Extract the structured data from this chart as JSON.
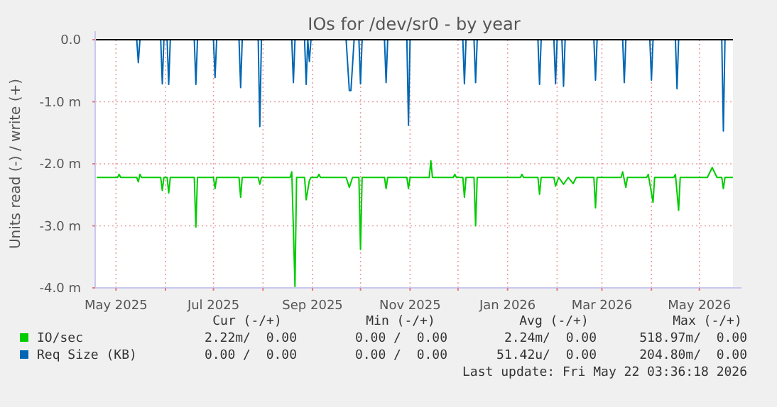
{
  "chart_data": {
    "type": "line",
    "title": "IOs for /dev/sr0 - by year",
    "ylabel": "Units read (-) / write (+)",
    "xlim": [
      "2025-04-18",
      "2026-05-22"
    ],
    "xticks": [
      {
        "value": "2025-05-01",
        "label": "May 2025"
      },
      {
        "value": "2025-06-01",
        "label": null
      },
      {
        "value": "2025-07-01",
        "label": "Jul 2025"
      },
      {
        "value": "2025-08-01",
        "label": null
      },
      {
        "value": "2025-09-01",
        "label": "Sep 2025"
      },
      {
        "value": "2025-10-01",
        "label": null
      },
      {
        "value": "2025-11-01",
        "label": "Nov 2025"
      },
      {
        "value": "2025-12-01",
        "label": null
      },
      {
        "value": "2026-01-01",
        "label": "Jan 2026"
      },
      {
        "value": "2026-02-01",
        "label": null
      },
      {
        "value": "2026-03-01",
        "label": "Mar 2026"
      },
      {
        "value": "2026-04-01",
        "label": null
      },
      {
        "value": "2026-05-01",
        "label": "May 2026"
      }
    ],
    "ylim": [
      -4,
      0
    ],
    "yticks": [
      {
        "value": -4,
        "label": "-4.0 m"
      },
      {
        "value": -3,
        "label": "-3.0 m"
      },
      {
        "value": -2,
        "label": "-2.0 m"
      },
      {
        "value": -1,
        "label": "-1.0 m"
      },
      {
        "value": 0,
        "label": "0.0"
      }
    ],
    "grid": true,
    "legend": "bottom",
    "line_style": "solid",
    "marker": "none",
    "series": [
      {
        "name": "IO/sec",
        "color": "#00cc00",
        "x": [
          "2025-04-19",
          "2025-05-02",
          "2025-05-03",
          "2025-05-04",
          "2025-05-14",
          "2025-05-15",
          "2025-05-16",
          "2025-05-17",
          "2025-05-29",
          "2025-05-30",
          "2025-05-31",
          "2025-06-02",
          "2025-06-03",
          "2025-06-04",
          "2025-06-19",
          "2025-06-20",
          "2025-06-21",
          "2025-07-01",
          "2025-07-02",
          "2025-07-03",
          "2025-07-17",
          "2025-07-18",
          "2025-07-19",
          "2025-07-29",
          "2025-07-30",
          "2025-07-31",
          "2025-08-18",
          "2025-08-19",
          "2025-08-21",
          "2025-08-22",
          "2025-08-27",
          "2025-08-28",
          "2025-08-30",
          "2025-08-31",
          "2025-09-04",
          "2025-09-05",
          "2025-09-06",
          "2025-09-22",
          "2025-09-24",
          "2025-09-26",
          "2025-09-30",
          "2025-10-01",
          "2025-10-02",
          "2025-10-16",
          "2025-10-17",
          "2025-10-18",
          "2025-10-30",
          "2025-10-31",
          "2025-11-01",
          "2025-11-13",
          "2025-11-14",
          "2025-11-15",
          "2025-11-28",
          "2025-11-29",
          "2025-11-30",
          "2025-12-04",
          "2025-12-05",
          "2025-12-06",
          "2025-12-11",
          "2025-12-12",
          "2025-12-13",
          "2026-01-09",
          "2026-01-10",
          "2026-01-11",
          "2026-01-20",
          "2026-01-21",
          "2026-01-22",
          "2026-01-30",
          "2026-01-31",
          "2026-02-02",
          "2026-02-05",
          "2026-02-08",
          "2026-02-11",
          "2026-02-13",
          "2026-02-24",
          "2026-02-25",
          "2026-02-26",
          "2026-03-13",
          "2026-03-14",
          "2026-03-16",
          "2026-03-17",
          "2026-03-29",
          "2026-03-30",
          "2026-04-02",
          "2026-04-03",
          "2026-04-15",
          "2026-04-16",
          "2026-04-18",
          "2026-04-19",
          "2026-05-06",
          "2026-05-09",
          "2026-05-12",
          "2026-05-15",
          "2026-05-16",
          "2026-05-17",
          "2026-05-22"
        ],
        "values": [
          -2.22,
          -2.22,
          -2.17,
          -2.22,
          -2.22,
          -2.29,
          -2.17,
          -2.22,
          -2.22,
          -2.43,
          -2.22,
          -2.22,
          -2.47,
          -2.22,
          -2.22,
          -3.02,
          -2.22,
          -2.22,
          -2.4,
          -2.22,
          -2.22,
          -2.54,
          -2.22,
          -2.22,
          -2.33,
          -2.22,
          -2.22,
          -2.13,
          -3.98,
          -2.22,
          -2.22,
          -2.58,
          -2.27,
          -2.22,
          -2.22,
          -2.17,
          -2.22,
          -2.22,
          -2.38,
          -2.22,
          -2.22,
          -3.38,
          -2.22,
          -2.22,
          -2.4,
          -2.22,
          -2.22,
          -2.4,
          -2.22,
          -2.22,
          -1.95,
          -2.22,
          -2.22,
          -2.17,
          -2.22,
          -2.22,
          -2.54,
          -2.22,
          -2.22,
          -3.0,
          -2.22,
          -2.22,
          -2.17,
          -2.22,
          -2.22,
          -2.49,
          -2.22,
          -2.22,
          -2.36,
          -2.22,
          -2.33,
          -2.22,
          -2.32,
          -2.22,
          -2.22,
          -2.71,
          -2.22,
          -2.22,
          -2.13,
          -2.38,
          -2.22,
          -2.22,
          -2.17,
          -2.62,
          -2.22,
          -2.22,
          -2.17,
          -2.75,
          -2.22,
          -2.22,
          -2.06,
          -2.22,
          -2.22,
          -2.4,
          -2.22,
          -2.22
        ]
      },
      {
        "name": "Req Size (KB)",
        "color": "#0066b3",
        "x": [
          "2025-04-19",
          "2025-05-14",
          "2025-05-15",
          "2025-05-16",
          "2025-05-29",
          "2025-05-30",
          "2025-05-31",
          "2025-06-02",
          "2025-06-03",
          "2025-06-04",
          "2025-06-19",
          "2025-06-20",
          "2025-06-21",
          "2025-07-01",
          "2025-07-02",
          "2025-07-03",
          "2025-07-17",
          "2025-07-18",
          "2025-07-19",
          "2025-07-29",
          "2025-07-30",
          "2025-07-31",
          "2025-08-19",
          "2025-08-20",
          "2025-08-21",
          "2025-08-27",
          "2025-08-28",
          "2025-08-29",
          "2025-08-30",
          "2025-08-31",
          "2025-09-22",
          "2025-09-24",
          "2025-09-25",
          "2025-09-27",
          "2025-09-30",
          "2025-10-01",
          "2025-10-02",
          "2025-10-16",
          "2025-10-17",
          "2025-10-18",
          "2025-10-30",
          "2025-10-31",
          "2025-11-01",
          "2025-12-04",
          "2025-12-05",
          "2025-12-06",
          "2025-12-11",
          "2025-12-12",
          "2025-12-13",
          "2026-01-20",
          "2026-01-21",
          "2026-01-22",
          "2026-01-30",
          "2026-01-31",
          "2026-02-01",
          "2026-02-04",
          "2026-02-05",
          "2026-02-06",
          "2026-02-24",
          "2026-02-25",
          "2026-02-26",
          "2026-03-14",
          "2026-03-15",
          "2026-03-16",
          "2026-03-31",
          "2026-04-01",
          "2026-04-02",
          "2026-04-16",
          "2026-04-17",
          "2026-04-18",
          "2026-05-15",
          "2026-05-16",
          "2026-05-17",
          "2026-05-22"
        ],
        "values": [
          0,
          0,
          -0.37,
          0,
          0,
          -0.71,
          0,
          0,
          -0.72,
          0,
          0,
          -0.72,
          0,
          0,
          -0.61,
          0,
          0,
          -0.77,
          0,
          0,
          -1.4,
          0,
          0,
          -0.69,
          0,
          0,
          -0.72,
          0,
          -0.35,
          0,
          0,
          -0.82,
          -0.82,
          0,
          0,
          -0.71,
          0,
          0,
          -0.69,
          0,
          0,
          -1.38,
          0,
          0,
          -0.71,
          0,
          0,
          -0.69,
          0,
          0,
          -0.72,
          0,
          0,
          -0.71,
          0,
          0,
          -0.75,
          0,
          0,
          -0.65,
          0,
          0,
          -0.69,
          0,
          0,
          -0.65,
          0,
          0,
          -0.79,
          0,
          0,
          -1.47,
          0,
          0
        ]
      }
    ],
    "annotations": [
      "Cur (-/+)",
      "Min (-/+)",
      "Avg (-/+)",
      "Max (-/+)",
      "2.22m/  0.00",
      "0.00 /  0.00",
      "2.24m/  0.00",
      "518.97m/  0.00",
      "0.00 /  0.00",
      "0.00 /  0.00",
      "51.42u/  0.00",
      "204.80m/  0.00",
      "Last update: Fri May 22 03:36:18 2026"
    ]
  }
}
